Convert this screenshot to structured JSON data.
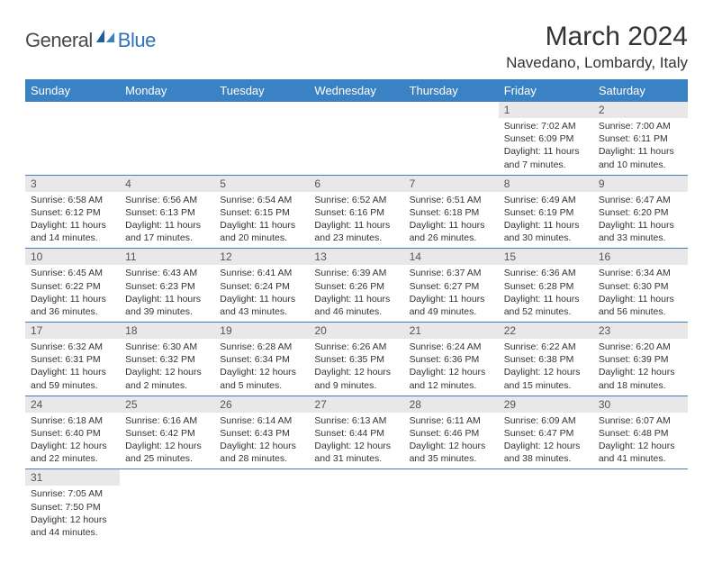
{
  "logo": {
    "general": "General",
    "blue": "Blue"
  },
  "title": "March 2024",
  "location": "Navedano, Lombardy, Italy",
  "weekdays": [
    "Sunday",
    "Monday",
    "Tuesday",
    "Wednesday",
    "Thursday",
    "Friday",
    "Saturday"
  ],
  "colors": {
    "header_bg": "#3b82c4",
    "header_text": "#ffffff",
    "daynum_bg": "#e8e8e8",
    "border": "#3b82c4",
    "logo_blue": "#2f72b8",
    "logo_gray": "#4a4a4a"
  },
  "weeks": [
    [
      null,
      null,
      null,
      null,
      null,
      {
        "n": "1",
        "sr": "Sunrise: 7:02 AM",
        "ss": "Sunset: 6:09 PM",
        "dl1": "Daylight: 11 hours",
        "dl2": "and 7 minutes."
      },
      {
        "n": "2",
        "sr": "Sunrise: 7:00 AM",
        "ss": "Sunset: 6:11 PM",
        "dl1": "Daylight: 11 hours",
        "dl2": "and 10 minutes."
      }
    ],
    [
      {
        "n": "3",
        "sr": "Sunrise: 6:58 AM",
        "ss": "Sunset: 6:12 PM",
        "dl1": "Daylight: 11 hours",
        "dl2": "and 14 minutes."
      },
      {
        "n": "4",
        "sr": "Sunrise: 6:56 AM",
        "ss": "Sunset: 6:13 PM",
        "dl1": "Daylight: 11 hours",
        "dl2": "and 17 minutes."
      },
      {
        "n": "5",
        "sr": "Sunrise: 6:54 AM",
        "ss": "Sunset: 6:15 PM",
        "dl1": "Daylight: 11 hours",
        "dl2": "and 20 minutes."
      },
      {
        "n": "6",
        "sr": "Sunrise: 6:52 AM",
        "ss": "Sunset: 6:16 PM",
        "dl1": "Daylight: 11 hours",
        "dl2": "and 23 minutes."
      },
      {
        "n": "7",
        "sr": "Sunrise: 6:51 AM",
        "ss": "Sunset: 6:18 PM",
        "dl1": "Daylight: 11 hours",
        "dl2": "and 26 minutes."
      },
      {
        "n": "8",
        "sr": "Sunrise: 6:49 AM",
        "ss": "Sunset: 6:19 PM",
        "dl1": "Daylight: 11 hours",
        "dl2": "and 30 minutes."
      },
      {
        "n": "9",
        "sr": "Sunrise: 6:47 AM",
        "ss": "Sunset: 6:20 PM",
        "dl1": "Daylight: 11 hours",
        "dl2": "and 33 minutes."
      }
    ],
    [
      {
        "n": "10",
        "sr": "Sunrise: 6:45 AM",
        "ss": "Sunset: 6:22 PM",
        "dl1": "Daylight: 11 hours",
        "dl2": "and 36 minutes."
      },
      {
        "n": "11",
        "sr": "Sunrise: 6:43 AM",
        "ss": "Sunset: 6:23 PM",
        "dl1": "Daylight: 11 hours",
        "dl2": "and 39 minutes."
      },
      {
        "n": "12",
        "sr": "Sunrise: 6:41 AM",
        "ss": "Sunset: 6:24 PM",
        "dl1": "Daylight: 11 hours",
        "dl2": "and 43 minutes."
      },
      {
        "n": "13",
        "sr": "Sunrise: 6:39 AM",
        "ss": "Sunset: 6:26 PM",
        "dl1": "Daylight: 11 hours",
        "dl2": "and 46 minutes."
      },
      {
        "n": "14",
        "sr": "Sunrise: 6:37 AM",
        "ss": "Sunset: 6:27 PM",
        "dl1": "Daylight: 11 hours",
        "dl2": "and 49 minutes."
      },
      {
        "n": "15",
        "sr": "Sunrise: 6:36 AM",
        "ss": "Sunset: 6:28 PM",
        "dl1": "Daylight: 11 hours",
        "dl2": "and 52 minutes."
      },
      {
        "n": "16",
        "sr": "Sunrise: 6:34 AM",
        "ss": "Sunset: 6:30 PM",
        "dl1": "Daylight: 11 hours",
        "dl2": "and 56 minutes."
      }
    ],
    [
      {
        "n": "17",
        "sr": "Sunrise: 6:32 AM",
        "ss": "Sunset: 6:31 PM",
        "dl1": "Daylight: 11 hours",
        "dl2": "and 59 minutes."
      },
      {
        "n": "18",
        "sr": "Sunrise: 6:30 AM",
        "ss": "Sunset: 6:32 PM",
        "dl1": "Daylight: 12 hours",
        "dl2": "and 2 minutes."
      },
      {
        "n": "19",
        "sr": "Sunrise: 6:28 AM",
        "ss": "Sunset: 6:34 PM",
        "dl1": "Daylight: 12 hours",
        "dl2": "and 5 minutes."
      },
      {
        "n": "20",
        "sr": "Sunrise: 6:26 AM",
        "ss": "Sunset: 6:35 PM",
        "dl1": "Daylight: 12 hours",
        "dl2": "and 9 minutes."
      },
      {
        "n": "21",
        "sr": "Sunrise: 6:24 AM",
        "ss": "Sunset: 6:36 PM",
        "dl1": "Daylight: 12 hours",
        "dl2": "and 12 minutes."
      },
      {
        "n": "22",
        "sr": "Sunrise: 6:22 AM",
        "ss": "Sunset: 6:38 PM",
        "dl1": "Daylight: 12 hours",
        "dl2": "and 15 minutes."
      },
      {
        "n": "23",
        "sr": "Sunrise: 6:20 AM",
        "ss": "Sunset: 6:39 PM",
        "dl1": "Daylight: 12 hours",
        "dl2": "and 18 minutes."
      }
    ],
    [
      {
        "n": "24",
        "sr": "Sunrise: 6:18 AM",
        "ss": "Sunset: 6:40 PM",
        "dl1": "Daylight: 12 hours",
        "dl2": "and 22 minutes."
      },
      {
        "n": "25",
        "sr": "Sunrise: 6:16 AM",
        "ss": "Sunset: 6:42 PM",
        "dl1": "Daylight: 12 hours",
        "dl2": "and 25 minutes."
      },
      {
        "n": "26",
        "sr": "Sunrise: 6:14 AM",
        "ss": "Sunset: 6:43 PM",
        "dl1": "Daylight: 12 hours",
        "dl2": "and 28 minutes."
      },
      {
        "n": "27",
        "sr": "Sunrise: 6:13 AM",
        "ss": "Sunset: 6:44 PM",
        "dl1": "Daylight: 12 hours",
        "dl2": "and 31 minutes."
      },
      {
        "n": "28",
        "sr": "Sunrise: 6:11 AM",
        "ss": "Sunset: 6:46 PM",
        "dl1": "Daylight: 12 hours",
        "dl2": "and 35 minutes."
      },
      {
        "n": "29",
        "sr": "Sunrise: 6:09 AM",
        "ss": "Sunset: 6:47 PM",
        "dl1": "Daylight: 12 hours",
        "dl2": "and 38 minutes."
      },
      {
        "n": "30",
        "sr": "Sunrise: 6:07 AM",
        "ss": "Sunset: 6:48 PM",
        "dl1": "Daylight: 12 hours",
        "dl2": "and 41 minutes."
      }
    ],
    [
      {
        "n": "31",
        "sr": "Sunrise: 7:05 AM",
        "ss": "Sunset: 7:50 PM",
        "dl1": "Daylight: 12 hours",
        "dl2": "and 44 minutes."
      },
      null,
      null,
      null,
      null,
      null,
      null
    ]
  ]
}
